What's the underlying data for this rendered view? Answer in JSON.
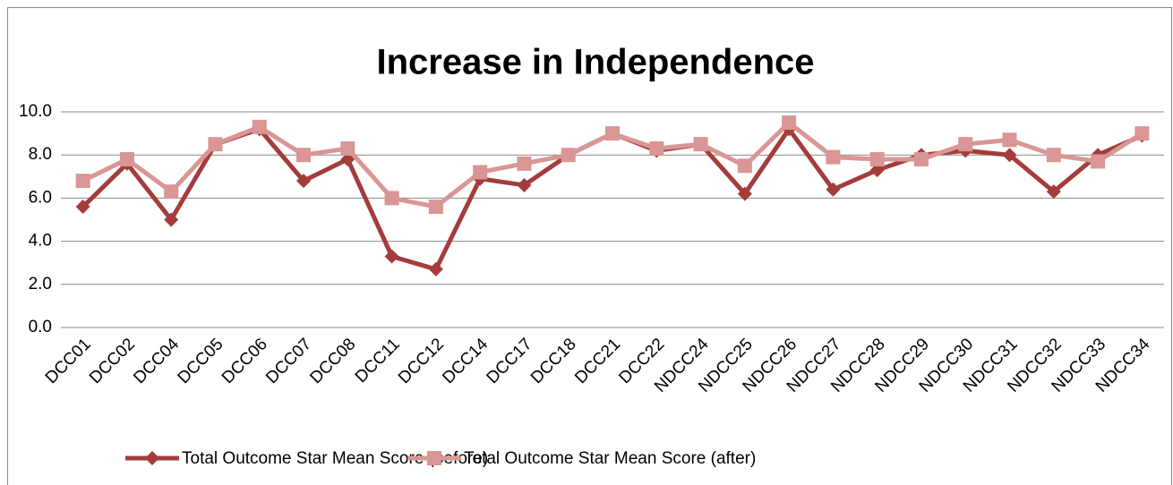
{
  "chart_data": {
    "type": "line",
    "title": "Increase in Independence",
    "categories": [
      "DCC01",
      "DCC02",
      "DCC04",
      "DCC05",
      "DCC06",
      "DCC07",
      "DCC08",
      "DCC11",
      "DCC12",
      "DCC14",
      "DCC17",
      "DCC18",
      "DCC21",
      "DCC22",
      "NDCC24",
      "NDCC25",
      "NDCC26",
      "NDCC27",
      "NDCC28",
      "NDCC29",
      "NDCC30",
      "NDCC31",
      "NDCC32",
      "NDCC33",
      "NDCC34"
    ],
    "series": [
      {
        "name": "Total Outcome Star Mean Score (before)",
        "color": "#a33c3b",
        "marker": "diamond",
        "values": [
          5.6,
          7.6,
          5.0,
          8.5,
          9.2,
          6.8,
          7.8,
          3.3,
          2.7,
          6.9,
          6.6,
          8.0,
          9.0,
          8.2,
          8.5,
          6.2,
          9.2,
          6.4,
          7.3,
          8.0,
          8.2,
          8.0,
          6.3,
          8.0,
          8.9
        ]
      },
      {
        "name": "Total Outcome Star Mean Score (after)",
        "color": "#d99694",
        "marker": "square",
        "values": [
          6.8,
          7.8,
          6.3,
          8.5,
          9.3,
          8.0,
          8.3,
          6.0,
          5.6,
          7.2,
          7.6,
          8.0,
          9.0,
          8.3,
          8.5,
          7.5,
          9.5,
          7.9,
          7.8,
          7.8,
          8.5,
          8.7,
          8.0,
          7.7,
          9.0
        ]
      }
    ],
    "ylim": [
      0,
      10
    ],
    "yticks": [
      {
        "value": 0,
        "label": "0.0"
      },
      {
        "value": 2,
        "label": "2.0"
      },
      {
        "value": 4,
        "label": "4.0"
      },
      {
        "value": 6,
        "label": "6.0"
      },
      {
        "value": 8,
        "label": "8.0"
      },
      {
        "value": 10,
        "label": "10.0"
      }
    ],
    "grid": true,
    "legend": "bottom"
  }
}
